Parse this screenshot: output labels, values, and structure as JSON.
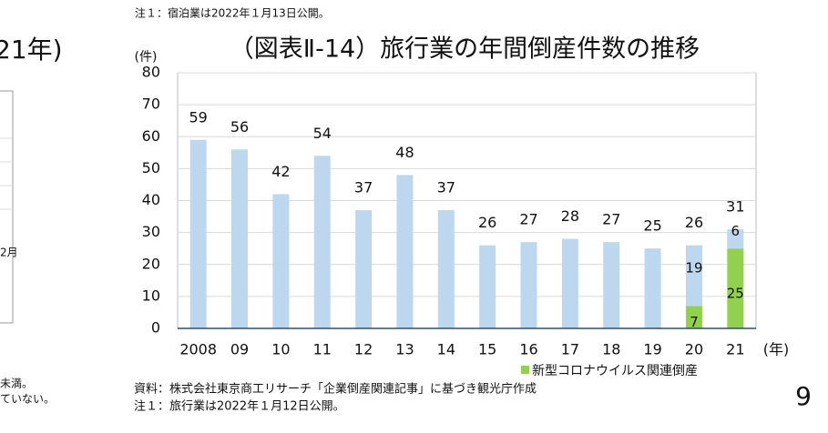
{
  "chart_data": {
    "type": "bar",
    "stacked": true,
    "title": "（図表Ⅱ-14）旅行業の年間倒産件数の推移",
    "y_label": "(件)",
    "x_label": "(年)",
    "categories": [
      "2008",
      "09",
      "10",
      "11",
      "12",
      "13",
      "14",
      "15",
      "16",
      "17",
      "18",
      "19",
      "20",
      "21"
    ],
    "series": [
      {
        "color": "#bdd7ee",
        "values": [
          59,
          56,
          42,
          54,
          37,
          48,
          37,
          26,
          27,
          28,
          27,
          25,
          19,
          6
        ]
      },
      {
        "name": "新型コロナウイルス関連倒産",
        "color": "#92d050",
        "values": [
          null,
          null,
          null,
          null,
          null,
          null,
          null,
          null,
          null,
          null,
          null,
          null,
          7,
          25
        ]
      }
    ],
    "totals": [
      59,
      56,
      42,
      54,
      37,
      48,
      37,
      26,
      27,
      28,
      27,
      25,
      26,
      31
    ],
    "ylim": [
      0,
      80
    ],
    "yticks": [
      0,
      10,
      20,
      30,
      40,
      50,
      60,
      70,
      80
    ],
    "grid": true,
    "legend": "bottom-right"
  },
  "page": {
    "top_note": "注１：宿泊業は2022年１月13日公開。",
    "left_title_fragment": "21年)",
    "left_axis_fragment": "2月",
    "left_note_1": "未満。",
    "left_note_2": "ていない。",
    "source": "資料：株式会社東京商工リサーチ「企業倒産関連記事」に基づき観光庁作成",
    "note": "注１：旅行業は2022年１月12日公開。",
    "page_number": "9"
  }
}
